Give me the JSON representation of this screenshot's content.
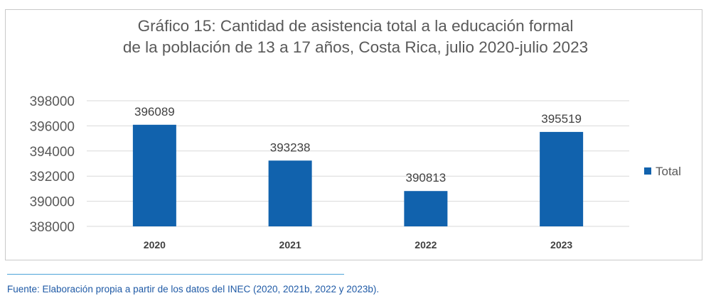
{
  "chart_data": {
    "type": "bar",
    "title": "Gráfico 15: Cantidad de asistencia total a la educación formal",
    "subtitle": "de la población de 13 a 17 años, Costa Rica, julio 2020-julio 2023",
    "categories": [
      "2020",
      "2021",
      "2022",
      "2023"
    ],
    "series": [
      {
        "name": "Total",
        "values": [
          396089,
          393238,
          390813,
          395519
        ]
      }
    ],
    "data_labels": [
      "396089",
      "393238",
      "390813",
      "395519"
    ],
    "yticks": [
      "388000",
      "390000",
      "392000",
      "394000",
      "396000",
      "398000"
    ],
    "ylim": [
      388000,
      398000
    ],
    "grid": true,
    "legend_position": "right",
    "colors": {
      "bar": "#1162ad",
      "grid": "#d9d9d9",
      "text": "#595959"
    }
  },
  "footer": {
    "source": "Fuente: Elaboración propia a partir de los datos del INEC (2020, 2021b, 2022 y 2023b)."
  }
}
